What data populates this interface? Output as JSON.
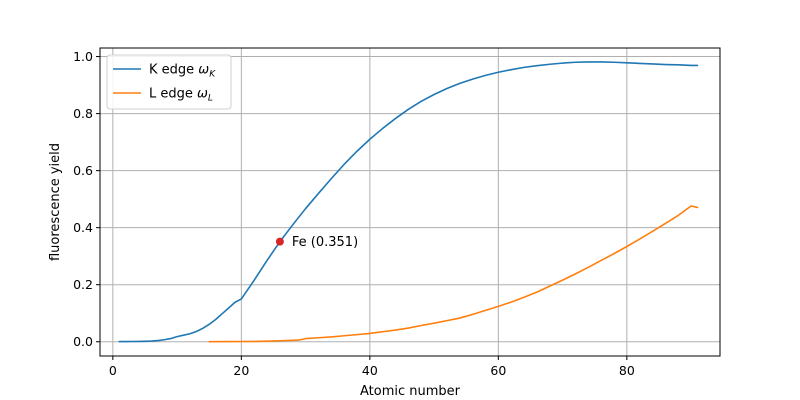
{
  "chart_data": {
    "type": "line",
    "xlabel": "Atomic number",
    "ylabel": "fluorescence yield",
    "xlim": [
      -2,
      94.5
    ],
    "ylim": [
      -0.05,
      1.03
    ],
    "xticks": [
      0,
      20,
      40,
      60,
      80
    ],
    "yticks": [
      0.0,
      0.2,
      0.4,
      0.6,
      0.8,
      1.0
    ],
    "xtick_labels": [
      "0",
      "20",
      "40",
      "60",
      "80"
    ],
    "ytick_labels": [
      "0.0",
      "0.2",
      "0.4",
      "0.6",
      "0.8",
      "1.0"
    ],
    "grid": true,
    "legend_position": "upper-left",
    "series": [
      {
        "name": "K edge ω_K",
        "legend_main": "K edge ",
        "legend_symbol": "ω",
        "legend_sub": "K",
        "color": "#1f77b4",
        "x": [
          1,
          2,
          3,
          4,
          5,
          6,
          7,
          8,
          9,
          10,
          11,
          12,
          13,
          14,
          15,
          16,
          17,
          18,
          19,
          20,
          22,
          24,
          26,
          28,
          30,
          32,
          34,
          36,
          38,
          40,
          42,
          44,
          46,
          48,
          50,
          52,
          54,
          56,
          58,
          60,
          62,
          64,
          66,
          68,
          70,
          72,
          74,
          76,
          78,
          80,
          82,
          84,
          86,
          88,
          90,
          91
        ],
        "y": [
          0.0005,
          0.0006,
          0.0008,
          0.001,
          0.0015,
          0.0025,
          0.004,
          0.007,
          0.011,
          0.018,
          0.023,
          0.028,
          0.036,
          0.047,
          0.061,
          0.078,
          0.098,
          0.118,
          0.138,
          0.15,
          0.216,
          0.285,
          0.351,
          0.41,
          0.467,
          0.52,
          0.572,
          0.622,
          0.668,
          0.71,
          0.748,
          0.783,
          0.815,
          0.843,
          0.867,
          0.888,
          0.906,
          0.921,
          0.934,
          0.945,
          0.954,
          0.962,
          0.968,
          0.973,
          0.977,
          0.98,
          0.981,
          0.981,
          0.98,
          0.978,
          0.976,
          0.974,
          0.972,
          0.971,
          0.969,
          0.969
        ]
      },
      {
        "name": "L edge ω_L",
        "legend_main": "L edge ",
        "legend_symbol": "ω",
        "legend_sub": "L",
        "color": "#ff7f0e",
        "x": [
          15,
          18,
          20,
          22,
          24,
          26,
          28,
          29,
          30,
          32,
          34,
          36,
          38,
          40,
          42,
          44,
          46,
          48,
          50,
          52,
          54,
          56,
          58,
          60,
          62,
          64,
          66,
          68,
          70,
          72,
          74,
          76,
          78,
          80,
          82,
          84,
          86,
          88,
          90,
          91
        ],
        "y": [
          0.0003,
          0.0005,
          0.0008,
          0.0012,
          0.002,
          0.0035,
          0.005,
          0.006,
          0.011,
          0.014,
          0.017,
          0.021,
          0.025,
          0.029,
          0.035,
          0.041,
          0.048,
          0.057,
          0.065,
          0.074,
          0.083,
          0.096,
          0.11,
          0.124,
          0.139,
          0.156,
          0.174,
          0.195,
          0.216,
          0.238,
          0.261,
          0.285,
          0.309,
          0.334,
          0.36,
          0.387,
          0.415,
          0.443,
          0.476,
          0.471
        ]
      }
    ],
    "annotations": [
      {
        "x": 26,
        "y": 0.351,
        "text": "Fe (0.351)",
        "color": "#d62728"
      }
    ]
  }
}
